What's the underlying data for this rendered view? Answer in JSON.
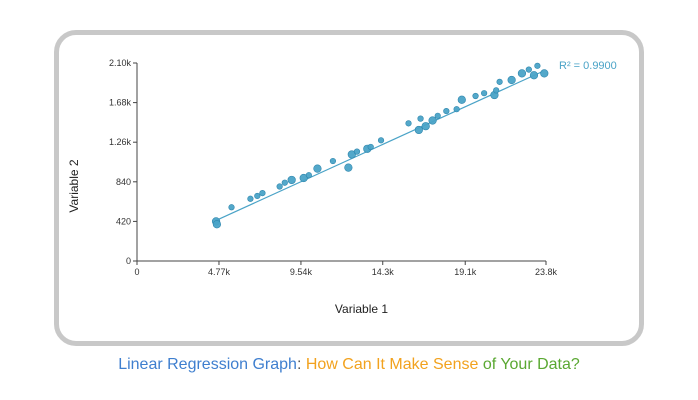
{
  "caption": {
    "part1": "Linear Regression Graph",
    "sep": ": ",
    "part2": "How Can It Make Sense",
    "part3": " of Your Data?"
  },
  "colors": {
    "marker": "#4aa3c7",
    "marker_stroke": "#2f86ad",
    "trendline": "#4aa3c7",
    "caption_blue": "#3f7fcf",
    "caption_colon": "#555555",
    "caption_orange": "#f2a21e",
    "caption_green": "#5aa832",
    "frame": "#c8c8c8"
  },
  "chart_data": {
    "type": "scatter",
    "xlabel": "Variable 1",
    "ylabel": "Variable 2",
    "xlim": [
      0,
      23800
    ],
    "ylim": [
      0,
      2100
    ],
    "x_ticks": [
      0,
      4770,
      9540,
      14300,
      19100,
      23800
    ],
    "x_tick_labels": [
      "0",
      "4.77k",
      "9.54k",
      "14.3k",
      "19.1k",
      "23.8k"
    ],
    "y_ticks": [
      0,
      420,
      840,
      1260,
      1680,
      2100
    ],
    "y_tick_labels": [
      "0",
      "420",
      "840",
      "1.26k",
      "1.68k",
      "2.10k"
    ],
    "trendline": {
      "label": "R² = 0.9900",
      "x": [
        4600,
        23600
      ],
      "y": [
        430,
        2010
      ]
    },
    "grid": false,
    "series": [
      {
        "points": [
          {
            "x": 4600,
            "y": 420,
            "size": 3
          },
          {
            "x": 4650,
            "y": 390,
            "size": 3
          },
          {
            "x": 5500,
            "y": 570,
            "size": 2
          },
          {
            "x": 6600,
            "y": 660,
            "size": 2
          },
          {
            "x": 7000,
            "y": 690,
            "size": 2
          },
          {
            "x": 7300,
            "y": 720,
            "size": 2
          },
          {
            "x": 8300,
            "y": 790,
            "size": 2
          },
          {
            "x": 8600,
            "y": 830,
            "size": 2
          },
          {
            "x": 9000,
            "y": 860,
            "size": 3
          },
          {
            "x": 9700,
            "y": 880,
            "size": 3
          },
          {
            "x": 10000,
            "y": 910,
            "size": 2
          },
          {
            "x": 10500,
            "y": 980,
            "size": 3
          },
          {
            "x": 11400,
            "y": 1060,
            "size": 2
          },
          {
            "x": 12300,
            "y": 990,
            "size": 3
          },
          {
            "x": 12500,
            "y": 1130,
            "size": 3
          },
          {
            "x": 12800,
            "y": 1160,
            "size": 2
          },
          {
            "x": 13400,
            "y": 1190,
            "size": 3
          },
          {
            "x": 13600,
            "y": 1210,
            "size": 2
          },
          {
            "x": 14200,
            "y": 1280,
            "size": 2
          },
          {
            "x": 15800,
            "y": 1460,
            "size": 2
          },
          {
            "x": 16400,
            "y": 1390,
            "size": 3
          },
          {
            "x": 16500,
            "y": 1510,
            "size": 2
          },
          {
            "x": 16800,
            "y": 1430,
            "size": 3
          },
          {
            "x": 17200,
            "y": 1490,
            "size": 3
          },
          {
            "x": 17500,
            "y": 1540,
            "size": 2
          },
          {
            "x": 18000,
            "y": 1590,
            "size": 2
          },
          {
            "x": 18600,
            "y": 1610,
            "size": 2
          },
          {
            "x": 18900,
            "y": 1710,
            "size": 3
          },
          {
            "x": 19700,
            "y": 1750,
            "size": 2
          },
          {
            "x": 20200,
            "y": 1780,
            "size": 2
          },
          {
            "x": 20800,
            "y": 1760,
            "size": 3
          },
          {
            "x": 20900,
            "y": 1810,
            "size": 2
          },
          {
            "x": 21100,
            "y": 1900,
            "size": 2
          },
          {
            "x": 21800,
            "y": 1920,
            "size": 3
          },
          {
            "x": 22400,
            "y": 1990,
            "size": 3
          },
          {
            "x": 22800,
            "y": 2030,
            "size": 2
          },
          {
            "x": 23100,
            "y": 1970,
            "size": 3
          },
          {
            "x": 23300,
            "y": 2070,
            "size": 2
          },
          {
            "x": 23700,
            "y": 1990,
            "size": 3
          }
        ]
      }
    ]
  }
}
